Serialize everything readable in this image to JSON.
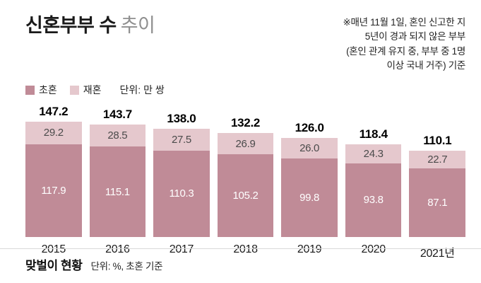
{
  "header": {
    "title_main": "신혼부부 수",
    "title_sub": "추이",
    "note_lines": [
      "※매년 11월 1일, 혼인 신고한 지",
      "5년이 경과 되지 않은 부부",
      "(혼인 관계 유지 중, 부부 중 1명",
      "이상 국내 거주) 기준"
    ]
  },
  "legend": {
    "first_label": "초혼",
    "second_label": "재혼",
    "unit": "단위: 만 쌍"
  },
  "chart_data": {
    "type": "bar",
    "stacked": true,
    "title": "신혼부부 수 추이",
    "unit": "만 쌍",
    "categories": [
      "2015",
      "2016",
      "2017",
      "2018",
      "2019",
      "2020",
      "2021년"
    ],
    "series": [
      {
        "name": "초혼",
        "color": "#c08b97",
        "values": [
          "117.9",
          "115.1",
          "110.3",
          "105.2",
          "99.8",
          "93.8",
          "87.1"
        ]
      },
      {
        "name": "재혼",
        "color": "#e5c8cd",
        "values": [
          "29.2",
          "28.5",
          "27.5",
          "26.9",
          "26.0",
          "24.3",
          "22.7"
        ]
      }
    ],
    "totals": [
      "147.2",
      "143.7",
      "138.0",
      "132.2",
      "126.0",
      "118.4",
      "110.1"
    ],
    "ylim": [
      0,
      150
    ],
    "legend_position": "top-left",
    "grid": false
  },
  "colors": {
    "first": "#c08b97",
    "second": "#e5c8cd"
  },
  "footer": {
    "section_title": "맞벌이 현황",
    "section_unit": "단위: %, 초혼 기준"
  }
}
